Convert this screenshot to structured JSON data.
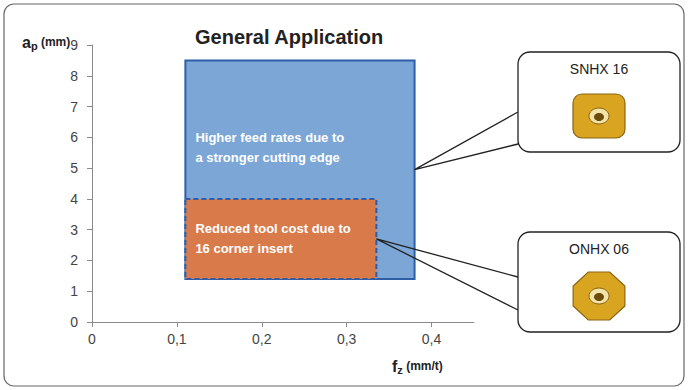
{
  "chart_data": {
    "type": "region",
    "title": "General Application",
    "xlabel": {
      "symbol": "f",
      "subscript": "z",
      "unit": "(mm/t)"
    },
    "ylabel": {
      "symbol": "a",
      "subscript": "p",
      "unit": "(mm)"
    },
    "xlim": [
      0,
      0.45
    ],
    "xticks": [
      0,
      {
        "value": 0.1,
        "label": "0,1"
      },
      {
        "value": 0.2,
        "label": "0,2"
      },
      {
        "value": 0.3,
        "label": "0,3"
      },
      {
        "value": 0.4,
        "label": "0,4"
      }
    ],
    "ylim": [
      0,
      9
    ],
    "yticks": [
      0,
      1,
      2,
      3,
      4,
      5,
      6,
      7,
      8,
      9
    ],
    "grid": false,
    "series": [
      {
        "name": "SNHX 16",
        "x": [
          0.11,
          0.38
        ],
        "y": [
          1.4,
          8.5
        ],
        "color": "#7ba6d6",
        "line_style": "solid",
        "marker": "square",
        "text": "Higher feed rates due to\na stronger cutting edge"
      },
      {
        "name": "ONHX 06",
        "x": [
          0.11,
          0.335
        ],
        "y": [
          1.4,
          4.0
        ],
        "color": "#d97a4a",
        "line_style": "dashed",
        "marker": "octagon",
        "text": "Reduced tool cost due to\n16 corner insert"
      }
    ]
  }
}
